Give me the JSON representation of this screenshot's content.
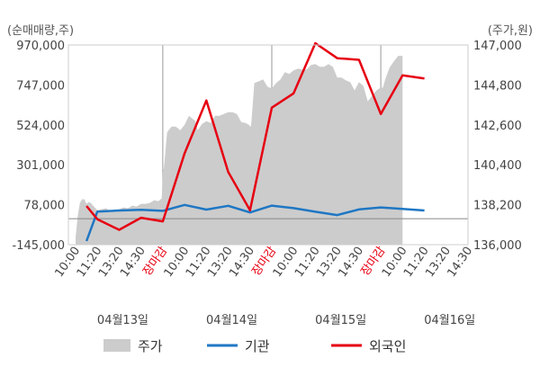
{
  "chart_data": {
    "type": "line",
    "left_axis_unit": "(순매매량,주)",
    "right_axis_unit": "(주가,원)",
    "left_ticks": [
      "970,000",
      "747,000",
      "524,000",
      "301,000",
      "78,000",
      "-145,000"
    ],
    "left_tick_values": [
      970000,
      747000,
      524000,
      301000,
      78000,
      -145000
    ],
    "right_ticks": [
      "147,000",
      "144,800",
      "142,600",
      "140,400",
      "138,200",
      "136,000"
    ],
    "right_tick_values": [
      147000,
      144800,
      142600,
      140400,
      138200,
      136000
    ],
    "left_range": [
      -145000,
      970000
    ],
    "right_range": [
      136000,
      147000
    ],
    "x_tick_labels": [
      "10:00",
      "11:20",
      "13:20",
      "14:30",
      "장마감",
      "10:00",
      "11:20",
      "13:20",
      "14:30",
      "장마감",
      "10:00",
      "11:20",
      "13:20",
      "14:30",
      "장마감",
      "10:00",
      "11:20",
      "13:20",
      "14:30"
    ],
    "close_label": "장마감",
    "dates": [
      "04월13일",
      "04월14일",
      "04월15일",
      "04월16일"
    ],
    "colors": {
      "price": "#cccccc",
      "institution": "#1f77c4",
      "foreign": "#e60012",
      "zero_line": "#888888",
      "frame": "#cccccc"
    },
    "series": [
      {
        "name": "기관",
        "axis": "left",
        "x": [
          0.5,
          1.0,
          2.0,
          3.0,
          4.0,
          5.0,
          6.0,
          7.0,
          8.0,
          9.0,
          10.0,
          11.0,
          12.0,
          13.0,
          14.0,
          15.0,
          16.0
        ],
        "values": [
          -125000,
          40000,
          46000,
          50000,
          44000,
          77000,
          51000,
          72000,
          35000,
          73000,
          59000,
          39000,
          20000,
          52000,
          63000,
          55000,
          46000
        ]
      },
      {
        "name": "외국인",
        "axis": "left",
        "x": [
          0.5,
          1.0,
          2.0,
          3.0,
          4.0,
          5.0,
          6.0,
          7.0,
          8.0,
          9.0,
          10.0,
          11.0,
          12.0,
          13.0,
          14.0,
          15.0,
          16.0
        ],
        "values": [
          71000,
          -3000,
          -62000,
          5000,
          -15000,
          365000,
          660000,
          261000,
          47000,
          620000,
          700000,
          980000,
          896000,
          887000,
          585000,
          800000,
          783000
        ]
      }
    ],
    "price": {
      "name": "주가",
      "axis": "right",
      "x": [
        0,
        0.1,
        0.2,
        0.3,
        0.4,
        0.5,
        0.6,
        0.7,
        0.8,
        1.0,
        1.2,
        1.4,
        1.6,
        1.8,
        2.0,
        2.2,
        2.4,
        2.6,
        2.8,
        3.0,
        3.2,
        3.4,
        3.6,
        3.8,
        3.95,
        4.0,
        4.05,
        4.2,
        4.4,
        4.6,
        4.8,
        5.0,
        5.2,
        5.4,
        5.5,
        5.6,
        5.8,
        6.0,
        6.2,
        6.4,
        6.6,
        6.8,
        7.0,
        7.2,
        7.4,
        7.6,
        7.8,
        7.95,
        8.0,
        8.05,
        8.2,
        8.4,
        8.6,
        8.8,
        9.0,
        9.2,
        9.4,
        9.6,
        9.8,
        10.0,
        10.2,
        10.4,
        10.6,
        10.8,
        11.0,
        11.2,
        11.4,
        11.6,
        11.8,
        11.95,
        12.0,
        12.05,
        12.2,
        12.4,
        12.6,
        12.8,
        13.0,
        13.2,
        13.4,
        13.6,
        13.8,
        14.0,
        14.1,
        14.2,
        14.4,
        14.6,
        14.8,
        15.0
      ],
      "values": [
        136400,
        137600,
        138300,
        138500,
        138500,
        138250,
        138350,
        138300,
        138150,
        137900,
        137950,
        138000,
        137850,
        137900,
        137950,
        138050,
        138000,
        138150,
        138100,
        138250,
        138250,
        138300,
        138450,
        138400,
        138550,
        140000,
        140200,
        142200,
        142500,
        142500,
        142300,
        142600,
        143100,
        142900,
        142800,
        142300,
        142650,
        142800,
        142700,
        143100,
        143100,
        143200,
        143300,
        143300,
        143200,
        142750,
        142700,
        142600,
        142500,
        142550,
        144900,
        145000,
        145100,
        144700,
        144600,
        144900,
        145100,
        145500,
        145400,
        145600,
        145700,
        145650,
        145650,
        145900,
        145950,
        145800,
        145800,
        145950,
        145800,
        145350,
        145200,
        145200,
        145200,
        145050,
        144950,
        144500,
        144950,
        144750,
        143900,
        144200,
        144500,
        144650,
        144650,
        145100,
        145750,
        146100,
        146400,
        146400
      ]
    }
  },
  "legend": [
    {
      "label": "주가",
      "key": "price"
    },
    {
      "label": "기관",
      "key": "institution"
    },
    {
      "label": "외국인",
      "key": "foreign"
    }
  ]
}
